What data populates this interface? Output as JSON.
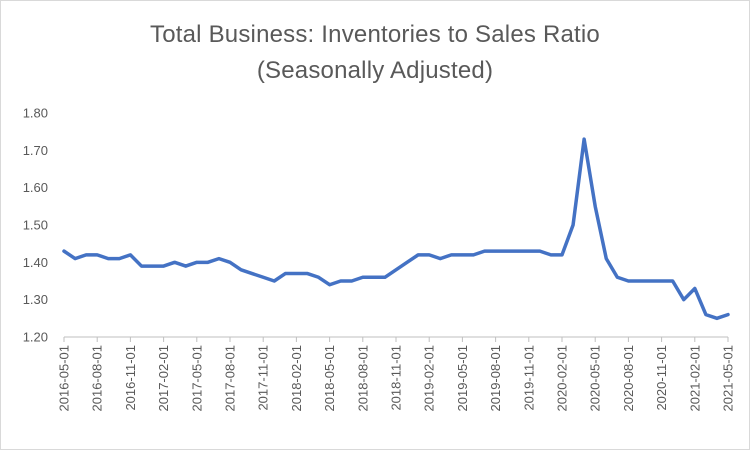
{
  "chart_data": {
    "type": "line",
    "title": "Total Business: Inventories to Sales Ratio",
    "subtitle": "(Seasonally Adjusted)",
    "xlabel": "",
    "ylabel": "",
    "ylim": [
      1.2,
      1.8
    ],
    "y_ticks": [
      "1.20",
      "1.30",
      "1.40",
      "1.50",
      "1.60",
      "1.70",
      "1.80"
    ],
    "x_tick_labels": [
      "2016-05-01",
      "2016-08-01",
      "2016-11-01",
      "2017-02-01",
      "2017-05-01",
      "2017-08-01",
      "2017-11-01",
      "2018-02-01",
      "2018-05-01",
      "2018-08-01",
      "2018-11-01",
      "2019-02-01",
      "2019-05-01",
      "2019-08-01",
      "2019-11-01",
      "2020-02-01",
      "2020-05-01",
      "2020-08-01",
      "2020-11-01",
      "2021-02-01",
      "2021-05-01"
    ],
    "grid": "off",
    "legend": "none",
    "line_color": "#4472C4",
    "x": [
      "2016-05-01",
      "2016-06-01",
      "2016-07-01",
      "2016-08-01",
      "2016-09-01",
      "2016-10-01",
      "2016-11-01",
      "2016-12-01",
      "2017-01-01",
      "2017-02-01",
      "2017-03-01",
      "2017-04-01",
      "2017-05-01",
      "2017-06-01",
      "2017-07-01",
      "2017-08-01",
      "2017-09-01",
      "2017-10-01",
      "2017-11-01",
      "2017-12-01",
      "2018-01-01",
      "2018-02-01",
      "2018-03-01",
      "2018-04-01",
      "2018-05-01",
      "2018-06-01",
      "2018-07-01",
      "2018-08-01",
      "2018-09-01",
      "2018-10-01",
      "2018-11-01",
      "2018-12-01",
      "2019-01-01",
      "2019-02-01",
      "2019-03-01",
      "2019-04-01",
      "2019-05-01",
      "2019-06-01",
      "2019-07-01",
      "2019-08-01",
      "2019-09-01",
      "2019-10-01",
      "2019-11-01",
      "2019-12-01",
      "2020-01-01",
      "2020-02-01",
      "2020-03-01",
      "2020-04-01",
      "2020-05-01",
      "2020-06-01",
      "2020-07-01",
      "2020-08-01",
      "2020-09-01",
      "2020-10-01",
      "2020-11-01",
      "2020-12-01",
      "2021-01-01",
      "2021-02-01",
      "2021-03-01",
      "2021-04-01",
      "2021-05-01"
    ],
    "series": [
      {
        "values": [
          1.43,
          1.41,
          1.42,
          1.42,
          1.41,
          1.41,
          1.42,
          1.39,
          1.39,
          1.39,
          1.4,
          1.39,
          1.4,
          1.4,
          1.41,
          1.4,
          1.38,
          1.37,
          1.36,
          1.35,
          1.37,
          1.37,
          1.37,
          1.36,
          1.34,
          1.35,
          1.35,
          1.36,
          1.36,
          1.36,
          1.38,
          1.4,
          1.42,
          1.42,
          1.41,
          1.42,
          1.42,
          1.42,
          1.43,
          1.43,
          1.43,
          1.43,
          1.43,
          1.43,
          1.42,
          1.42,
          1.5,
          1.73,
          1.55,
          1.41,
          1.36,
          1.35,
          1.35,
          1.35,
          1.35,
          1.35,
          1.3,
          1.33,
          1.26,
          1.25,
          1.26
        ]
      }
    ]
  }
}
